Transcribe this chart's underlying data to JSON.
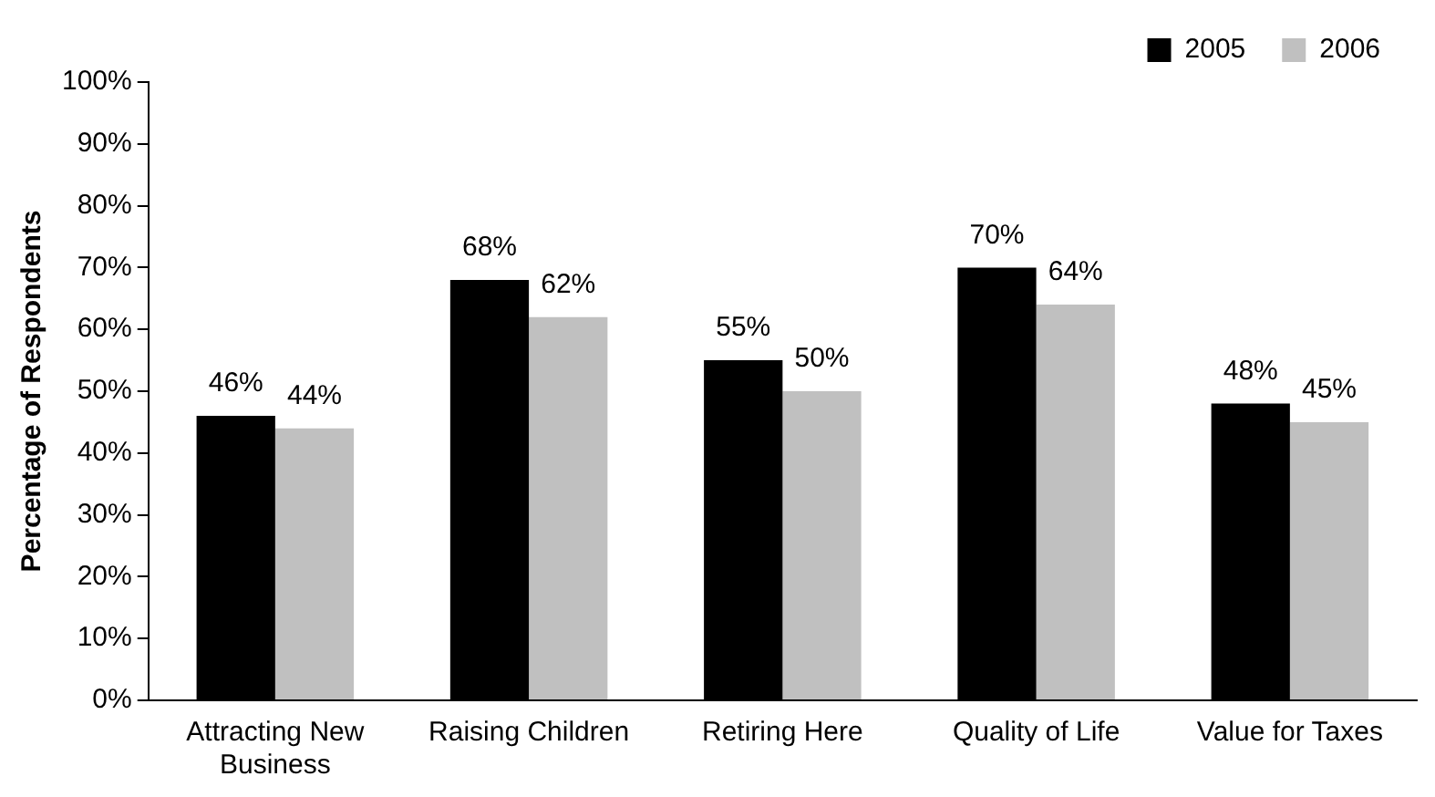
{
  "chart_data": {
    "type": "bar",
    "ylabel": "Percentage of Respondents",
    "categories": [
      "Attracting New Business",
      "Raising Children",
      "Retiring Here",
      "Quality of Life",
      "Value for Taxes"
    ],
    "series": [
      {
        "name": "2005",
        "color": "#000000",
        "values": [
          46,
          68,
          55,
          70,
          48
        ],
        "value_labels": [
          "46%",
          "68%",
          "55%",
          "70%",
          "48%"
        ]
      },
      {
        "name": "2006",
        "color": "#c0c0c0",
        "values": [
          44,
          62,
          50,
          64,
          45
        ],
        "value_labels": [
          "44%",
          "62%",
          "50%",
          "64%",
          "45%"
        ]
      }
    ],
    "ylim": [
      0,
      100
    ],
    "yticks": [
      {
        "value": 0,
        "label": "0%"
      },
      {
        "value": 10,
        "label": "10%"
      },
      {
        "value": 20,
        "label": "20%"
      },
      {
        "value": 30,
        "label": "30%"
      },
      {
        "value": 40,
        "label": "40%"
      },
      {
        "value": 50,
        "label": "50%"
      },
      {
        "value": 60,
        "label": "60%"
      },
      {
        "value": 70,
        "label": "70%"
      },
      {
        "value": 80,
        "label": "80%"
      },
      {
        "value": 90,
        "label": "90%"
      },
      {
        "value": 100,
        "label": "100%"
      }
    ],
    "grid": false,
    "legend": "top right"
  }
}
